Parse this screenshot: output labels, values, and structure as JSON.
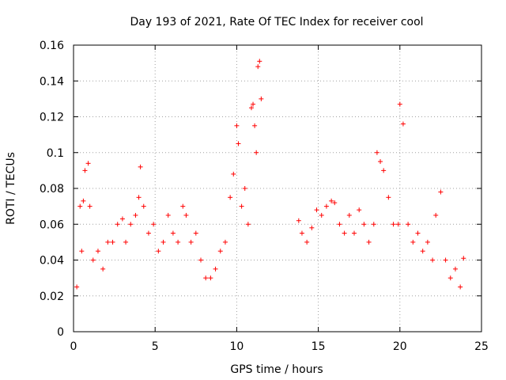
{
  "chart_data": {
    "type": "scatter",
    "title": "Day 193 of 2021, Rate Of TEC Index for receiver cool",
    "xlabel": "GPS time / hours",
    "ylabel": "ROTI / TECUs",
    "xlim": [
      0,
      25
    ],
    "ylim": [
      0,
      0.16
    ],
    "xticks": [
      0,
      5,
      10,
      15,
      20,
      25
    ],
    "xtick_labels": [
      "0",
      "5",
      "10",
      "15",
      "20",
      "25"
    ],
    "yticks": [
      0,
      0.02,
      0.04,
      0.06,
      0.08,
      0.1,
      0.12,
      0.14,
      0.16
    ],
    "ytick_labels": [
      "0",
      "0.02",
      "0.04",
      "0.06",
      "0.08",
      "0.1",
      "0.12",
      "0.14",
      "0.16"
    ],
    "grid": true,
    "marker": "+",
    "color": "#ff0000",
    "series": [
      {
        "x": [
          0.2,
          0.4,
          0.5,
          0.6,
          0.7,
          0.9,
          1.0,
          1.2,
          1.5,
          1.8,
          2.1,
          2.4,
          2.7,
          3.0,
          3.2,
          3.5,
          3.8,
          4.0,
          4.1,
          4.3,
          4.6,
          4.9,
          5.2,
          5.5,
          5.8,
          6.1,
          6.4,
          6.7,
          6.9,
          7.2,
          7.5,
          7.8,
          8.1,
          8.4,
          8.7,
          9.0,
          9.3,
          9.6,
          9.8,
          10.0,
          10.1,
          10.3,
          10.5,
          10.7,
          10.9,
          11.0,
          11.1,
          11.2,
          11.3,
          11.4,
          11.5,
          13.8,
          14.0,
          14.3,
          14.6,
          14.9,
          15.2,
          15.5,
          15.8,
          16.0,
          16.3,
          16.6,
          16.9,
          17.2,
          17.5,
          17.8,
          18.1,
          18.4,
          18.6,
          18.8,
          19.0,
          19.3,
          19.6,
          19.9,
          20.0,
          20.2,
          20.5,
          20.8,
          21.1,
          21.4,
          21.7,
          22.0,
          22.2,
          22.5,
          22.8,
          23.1,
          23.4,
          23.7,
          23.9
        ],
        "y": [
          0.025,
          0.07,
          0.045,
          0.073,
          0.09,
          0.094,
          0.07,
          0.04,
          0.045,
          0.035,
          0.05,
          0.05,
          0.06,
          0.063,
          0.05,
          0.06,
          0.065,
          0.075,
          0.092,
          0.07,
          0.055,
          0.06,
          0.045,
          0.05,
          0.065,
          0.055,
          0.05,
          0.07,
          0.065,
          0.05,
          0.055,
          0.04,
          0.03,
          0.03,
          0.035,
          0.045,
          0.05,
          0.075,
          0.088,
          0.115,
          0.105,
          0.07,
          0.08,
          0.06,
          0.125,
          0.127,
          0.115,
          0.1,
          0.148,
          0.151,
          0.13,
          0.062,
          0.055,
          0.05,
          0.058,
          0.068,
          0.065,
          0.07,
          0.073,
          0.072,
          0.06,
          0.055,
          0.065,
          0.055,
          0.068,
          0.06,
          0.05,
          0.06,
          0.1,
          0.095,
          0.09,
          0.075,
          0.06,
          0.06,
          0.127,
          0.116,
          0.06,
          0.05,
          0.055,
          0.045,
          0.05,
          0.04,
          0.065,
          0.078,
          0.04,
          0.03,
          0.035,
          0.025,
          0.041
        ]
      }
    ]
  }
}
